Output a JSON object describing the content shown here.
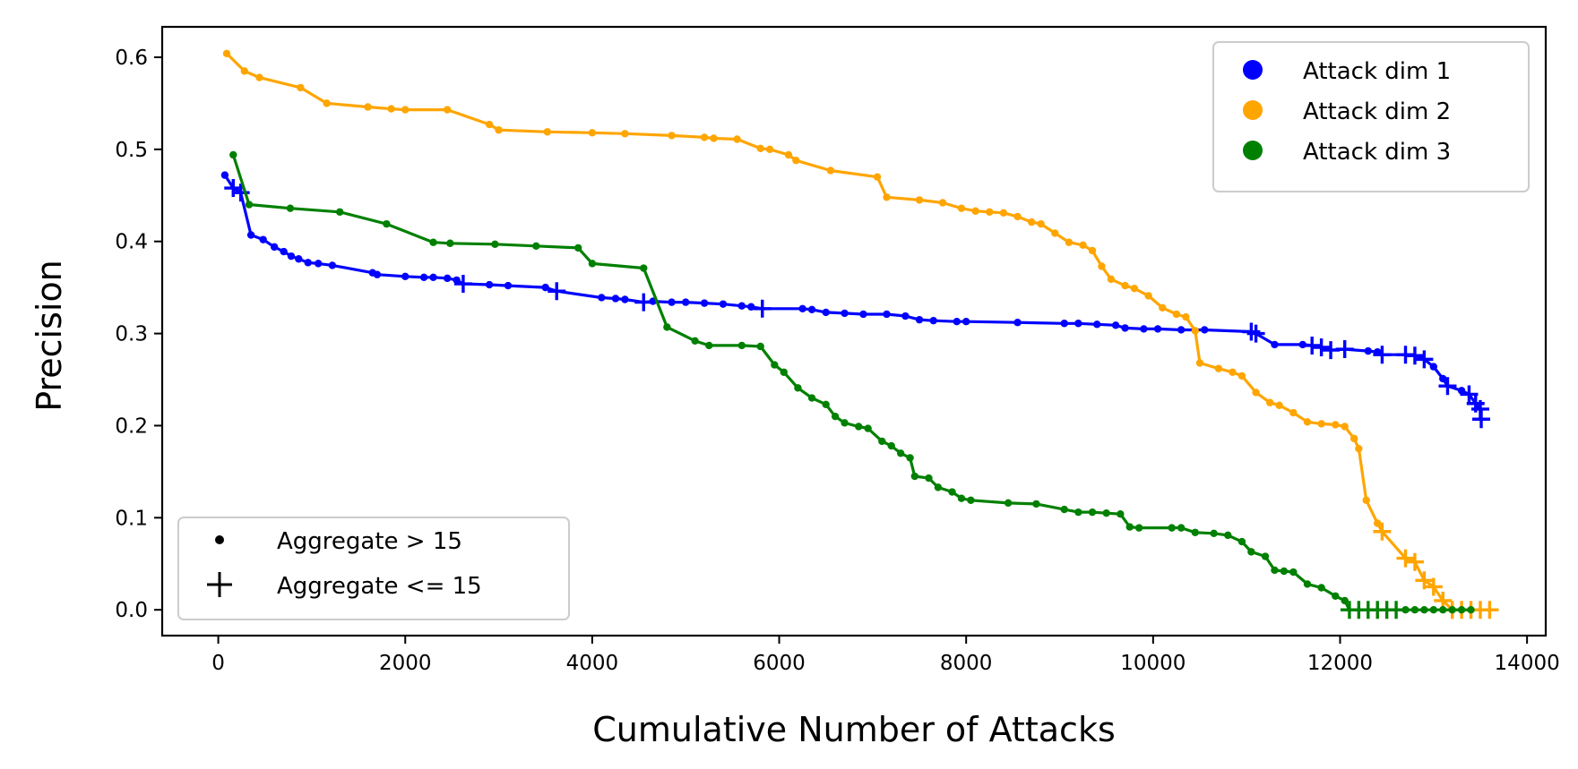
{
  "chart_data": {
    "type": "line",
    "xlabel": "Cumulative Number of Attacks",
    "ylabel": "Precision",
    "xlim": [
      -600,
      14200
    ],
    "ylim": [
      -0.028,
      0.633
    ],
    "xticks": [
      0,
      2000,
      4000,
      6000,
      8000,
      10000,
      12000,
      14000
    ],
    "yticks": [
      0.0,
      0.1,
      0.2,
      0.3,
      0.4,
      0.5,
      0.6
    ],
    "xtick_labels": [
      "0",
      "2000",
      "4000",
      "6000",
      "8000",
      "10000",
      "12000",
      "14000"
    ],
    "ytick_labels": [
      "0.0",
      "0.1",
      "0.2",
      "0.3",
      "0.4",
      "0.5",
      "0.6"
    ],
    "grid": false,
    "legend_series_placement": "top-right",
    "legend_markers_placement": "bottom-left",
    "marker_legend": [
      {
        "marker": "dot",
        "label": "Aggregate > 15"
      },
      {
        "marker": "plus",
        "label": "Aggregate <= 15"
      }
    ],
    "series": [
      {
        "name": "Attack dim 1",
        "color": "#0000ff",
        "points": [
          [
            70,
            0.472,
            "dot"
          ],
          [
            160,
            0.458,
            "plus"
          ],
          [
            240,
            0.453,
            "plus"
          ],
          [
            350,
            0.407,
            "dot"
          ],
          [
            480,
            0.402,
            "dot"
          ],
          [
            600,
            0.394,
            "dot"
          ],
          [
            700,
            0.389,
            "dot"
          ],
          [
            780,
            0.384,
            "dot"
          ],
          [
            860,
            0.381,
            "dot"
          ],
          [
            960,
            0.377,
            "dot"
          ],
          [
            1070,
            0.376,
            "dot"
          ],
          [
            1220,
            0.374,
            "dot"
          ],
          [
            1650,
            0.366,
            "dot"
          ],
          [
            1700,
            0.364,
            "dot"
          ],
          [
            2000,
            0.362,
            "dot"
          ],
          [
            2200,
            0.361,
            "dot"
          ],
          [
            2300,
            0.361,
            "dot"
          ],
          [
            2450,
            0.36,
            "dot"
          ],
          [
            2550,
            0.358,
            "dot"
          ],
          [
            2620,
            0.354,
            "plus"
          ],
          [
            2900,
            0.353,
            "dot"
          ],
          [
            3100,
            0.352,
            "dot"
          ],
          [
            3500,
            0.35,
            "dot"
          ],
          [
            3620,
            0.346,
            "plus"
          ],
          [
            4100,
            0.339,
            "dot"
          ],
          [
            4250,
            0.338,
            "dot"
          ],
          [
            4350,
            0.337,
            "dot"
          ],
          [
            4550,
            0.334,
            "plus"
          ],
          [
            4650,
            0.335,
            "dot"
          ],
          [
            4850,
            0.334,
            "dot"
          ],
          [
            5000,
            0.334,
            "dot"
          ],
          [
            5200,
            0.333,
            "dot"
          ],
          [
            5400,
            0.332,
            "dot"
          ],
          [
            5600,
            0.33,
            "dot"
          ],
          [
            5700,
            0.329,
            "dot"
          ],
          [
            5820,
            0.327,
            "plus"
          ],
          [
            6250,
            0.327,
            "dot"
          ],
          [
            6350,
            0.326,
            "dot"
          ],
          [
            6500,
            0.323,
            "dot"
          ],
          [
            6700,
            0.322,
            "dot"
          ],
          [
            6900,
            0.321,
            "dot"
          ],
          [
            7150,
            0.321,
            "dot"
          ],
          [
            7350,
            0.319,
            "dot"
          ],
          [
            7500,
            0.315,
            "dot"
          ],
          [
            7650,
            0.314,
            "dot"
          ],
          [
            7900,
            0.313,
            "dot"
          ],
          [
            8000,
            0.313,
            "dot"
          ],
          [
            8550,
            0.312,
            "dot"
          ],
          [
            9050,
            0.311,
            "dot"
          ],
          [
            9200,
            0.311,
            "dot"
          ],
          [
            9400,
            0.31,
            "dot"
          ],
          [
            9600,
            0.309,
            "dot"
          ],
          [
            9700,
            0.306,
            "dot"
          ],
          [
            9900,
            0.305,
            "dot"
          ],
          [
            10050,
            0.305,
            "dot"
          ],
          [
            10300,
            0.304,
            "dot"
          ],
          [
            10550,
            0.304,
            "dot"
          ],
          [
            11050,
            0.302,
            "plus"
          ],
          [
            11100,
            0.3,
            "plus"
          ],
          [
            11300,
            0.288,
            "dot"
          ],
          [
            11600,
            0.288,
            "dot"
          ],
          [
            11700,
            0.287,
            "plus"
          ],
          [
            11800,
            0.285,
            "plus"
          ],
          [
            11900,
            0.282,
            "plus"
          ],
          [
            12050,
            0.283,
            "plus"
          ],
          [
            12300,
            0.281,
            "dot"
          ],
          [
            12400,
            0.28,
            "dot"
          ],
          [
            12450,
            0.277,
            "plus"
          ],
          [
            12700,
            0.277,
            "plus"
          ],
          [
            12800,
            0.276,
            "plus"
          ],
          [
            12900,
            0.272,
            "plus"
          ],
          [
            13000,
            0.264,
            "dot"
          ],
          [
            13100,
            0.251,
            "dot"
          ],
          [
            13150,
            0.243,
            "plus"
          ],
          [
            13300,
            0.238,
            "dot"
          ],
          [
            13380,
            0.234,
            "plus"
          ],
          [
            13450,
            0.224,
            "plus"
          ],
          [
            13500,
            0.218,
            "plus"
          ],
          [
            13510,
            0.207,
            "plus"
          ]
        ]
      },
      {
        "name": "Attack dim 2",
        "color": "#ffa500",
        "points": [
          [
            90,
            0.604,
            "dot"
          ],
          [
            280,
            0.585,
            "dot"
          ],
          [
            440,
            0.578,
            "dot"
          ],
          [
            880,
            0.567,
            "dot"
          ],
          [
            1160,
            0.55,
            "dot"
          ],
          [
            1600,
            0.546,
            "dot"
          ],
          [
            1850,
            0.544,
            "dot"
          ],
          [
            2000,
            0.543,
            "dot"
          ],
          [
            2450,
            0.543,
            "dot"
          ],
          [
            2900,
            0.527,
            "dot"
          ],
          [
            3000,
            0.521,
            "dot"
          ],
          [
            3520,
            0.519,
            "dot"
          ],
          [
            4000,
            0.518,
            "dot"
          ],
          [
            4350,
            0.517,
            "dot"
          ],
          [
            4850,
            0.515,
            "dot"
          ],
          [
            5200,
            0.513,
            "dot"
          ],
          [
            5300,
            0.512,
            "dot"
          ],
          [
            5550,
            0.511,
            "dot"
          ],
          [
            5800,
            0.501,
            "dot"
          ],
          [
            5900,
            0.5,
            "dot"
          ],
          [
            6100,
            0.494,
            "dot"
          ],
          [
            6180,
            0.488,
            "dot"
          ],
          [
            6550,
            0.477,
            "dot"
          ],
          [
            7050,
            0.47,
            "dot"
          ],
          [
            7150,
            0.448,
            "dot"
          ],
          [
            7500,
            0.445,
            "dot"
          ],
          [
            7750,
            0.442,
            "dot"
          ],
          [
            7950,
            0.436,
            "dot"
          ],
          [
            8100,
            0.433,
            "dot"
          ],
          [
            8250,
            0.432,
            "dot"
          ],
          [
            8400,
            0.431,
            "dot"
          ],
          [
            8550,
            0.427,
            "dot"
          ],
          [
            8700,
            0.421,
            "dot"
          ],
          [
            8800,
            0.419,
            "dot"
          ],
          [
            8950,
            0.409,
            "dot"
          ],
          [
            9100,
            0.399,
            "dot"
          ],
          [
            9250,
            0.396,
            "dot"
          ],
          [
            9350,
            0.39,
            "dot"
          ],
          [
            9450,
            0.373,
            "dot"
          ],
          [
            9550,
            0.359,
            "dot"
          ],
          [
            9700,
            0.352,
            "dot"
          ],
          [
            9800,
            0.349,
            "dot"
          ],
          [
            9950,
            0.341,
            "dot"
          ],
          [
            10100,
            0.328,
            "dot"
          ],
          [
            10250,
            0.321,
            "dot"
          ],
          [
            10350,
            0.318,
            "dot"
          ],
          [
            10450,
            0.303,
            "dot"
          ],
          [
            10500,
            0.268,
            "dot"
          ],
          [
            10700,
            0.262,
            "dot"
          ],
          [
            10850,
            0.258,
            "dot"
          ],
          [
            10950,
            0.254,
            "dot"
          ],
          [
            11100,
            0.236,
            "dot"
          ],
          [
            11250,
            0.225,
            "dot"
          ],
          [
            11350,
            0.222,
            "dot"
          ],
          [
            11500,
            0.214,
            "dot"
          ],
          [
            11650,
            0.204,
            "dot"
          ],
          [
            11800,
            0.202,
            "dot"
          ],
          [
            11950,
            0.201,
            "dot"
          ],
          [
            12050,
            0.199,
            "dot"
          ],
          [
            12150,
            0.186,
            "dot"
          ],
          [
            12200,
            0.175,
            "dot"
          ],
          [
            12280,
            0.119,
            "dot"
          ],
          [
            12400,
            0.094,
            "dot"
          ],
          [
            12450,
            0.085,
            "plus"
          ],
          [
            12700,
            0.056,
            "plus"
          ],
          [
            12800,
            0.052,
            "plus"
          ],
          [
            12900,
            0.032,
            "plus"
          ],
          [
            13000,
            0.025,
            "plus"
          ],
          [
            13100,
            0.01,
            "plus"
          ],
          [
            13200,
            0.0,
            "plus"
          ],
          [
            13300,
            0.0,
            "plus"
          ],
          [
            13400,
            0.0,
            "plus"
          ],
          [
            13500,
            0.0,
            "plus"
          ],
          [
            13600,
            0.0,
            "plus"
          ]
        ]
      },
      {
        "name": "Attack dim 3",
        "color": "#008000",
        "points": [
          [
            160,
            0.494,
            "dot"
          ],
          [
            330,
            0.44,
            "dot"
          ],
          [
            770,
            0.436,
            "dot"
          ],
          [
            1300,
            0.432,
            "dot"
          ],
          [
            1800,
            0.419,
            "dot"
          ],
          [
            2300,
            0.399,
            "dot"
          ],
          [
            2480,
            0.398,
            "dot"
          ],
          [
            2960,
            0.397,
            "dot"
          ],
          [
            3400,
            0.395,
            "dot"
          ],
          [
            3850,
            0.393,
            "dot"
          ],
          [
            4000,
            0.376,
            "dot"
          ],
          [
            4550,
            0.371,
            "dot"
          ],
          [
            4800,
            0.307,
            "dot"
          ],
          [
            5100,
            0.292,
            "dot"
          ],
          [
            5250,
            0.287,
            "dot"
          ],
          [
            5600,
            0.287,
            "dot"
          ],
          [
            5800,
            0.286,
            "dot"
          ],
          [
            5950,
            0.266,
            "dot"
          ],
          [
            6050,
            0.258,
            "dot"
          ],
          [
            6200,
            0.241,
            "dot"
          ],
          [
            6350,
            0.23,
            "dot"
          ],
          [
            6500,
            0.223,
            "dot"
          ],
          [
            6600,
            0.21,
            "dot"
          ],
          [
            6700,
            0.203,
            "dot"
          ],
          [
            6850,
            0.199,
            "dot"
          ],
          [
            6950,
            0.197,
            "dot"
          ],
          [
            7100,
            0.183,
            "dot"
          ],
          [
            7200,
            0.178,
            "dot"
          ],
          [
            7300,
            0.17,
            "dot"
          ],
          [
            7400,
            0.165,
            "dot"
          ],
          [
            7450,
            0.145,
            "dot"
          ],
          [
            7600,
            0.143,
            "dot"
          ],
          [
            7700,
            0.133,
            "dot"
          ],
          [
            7850,
            0.128,
            "dot"
          ],
          [
            7950,
            0.121,
            "dot"
          ],
          [
            8050,
            0.119,
            "dot"
          ],
          [
            8450,
            0.116,
            "dot"
          ],
          [
            8750,
            0.115,
            "dot"
          ],
          [
            9050,
            0.109,
            "dot"
          ],
          [
            9200,
            0.106,
            "dot"
          ],
          [
            9350,
            0.106,
            "dot"
          ],
          [
            9500,
            0.105,
            "dot"
          ],
          [
            9650,
            0.104,
            "dot"
          ],
          [
            9750,
            0.09,
            "dot"
          ],
          [
            9850,
            0.089,
            "dot"
          ],
          [
            10200,
            0.089,
            "dot"
          ],
          [
            10300,
            0.089,
            "dot"
          ],
          [
            10450,
            0.084,
            "dot"
          ],
          [
            10650,
            0.083,
            "dot"
          ],
          [
            10800,
            0.081,
            "dot"
          ],
          [
            10950,
            0.074,
            "dot"
          ],
          [
            11050,
            0.063,
            "dot"
          ],
          [
            11200,
            0.058,
            "dot"
          ],
          [
            11300,
            0.043,
            "dot"
          ],
          [
            11400,
            0.042,
            "dot"
          ],
          [
            11500,
            0.041,
            "dot"
          ],
          [
            11650,
            0.028,
            "dot"
          ],
          [
            11800,
            0.024,
            "dot"
          ],
          [
            11950,
            0.015,
            "dot"
          ],
          [
            12050,
            0.01,
            "dot"
          ],
          [
            12100,
            0.0,
            "plus"
          ],
          [
            12200,
            0.0,
            "plus"
          ],
          [
            12300,
            0.0,
            "plus"
          ],
          [
            12400,
            0.0,
            "plus"
          ],
          [
            12500,
            0.0,
            "plus"
          ],
          [
            12600,
            0.0,
            "plus"
          ],
          [
            12700,
            0.0,
            "dot"
          ],
          [
            12800,
            0.0,
            "dot"
          ],
          [
            12900,
            0.0,
            "dot"
          ],
          [
            13000,
            0.0,
            "dot"
          ],
          [
            13100,
            0.0,
            "dot"
          ],
          [
            13200,
            0.0,
            "dot"
          ],
          [
            13300,
            0.0,
            "dot"
          ],
          [
            13400,
            0.0,
            "dot"
          ]
        ]
      }
    ]
  }
}
